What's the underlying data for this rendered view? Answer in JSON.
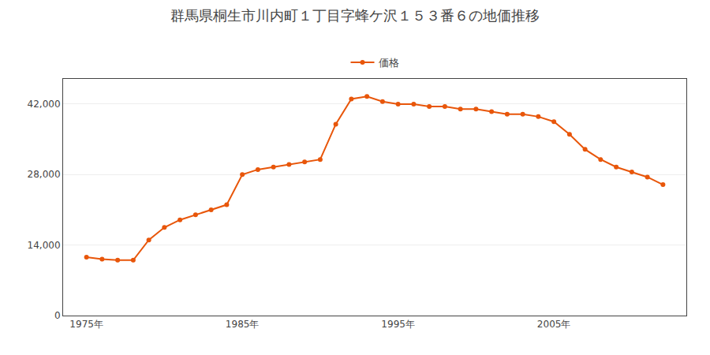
{
  "chart_data": {
    "type": "line",
    "title": "群馬県桐生市川内町１丁目字蜂ケ沢１５３番６の地価推移",
    "x": [
      1975,
      1976,
      1977,
      1978,
      1979,
      1980,
      1981,
      1982,
      1983,
      1984,
      1985,
      1986,
      1987,
      1988,
      1989,
      1990,
      1991,
      1992,
      1993,
      1994,
      1995,
      1996,
      1997,
      1998,
      1999,
      2000,
      2001,
      2002,
      2003,
      2004,
      2005,
      2006,
      2007,
      2008,
      2009,
      2010,
      2011,
      2012
    ],
    "series": [
      {
        "name": "価格",
        "color": "#e8560a",
        "marker": "circle",
        "values": [
          11600,
          11200,
          11000,
          11000,
          15000,
          17500,
          19000,
          20000,
          21000,
          22000,
          28000,
          29000,
          29500,
          30000,
          30500,
          31000,
          38000,
          43000,
          43500,
          42500,
          42000,
          42000,
          41500,
          41500,
          41000,
          41000,
          40500,
          40000,
          40000,
          39500,
          38500,
          36000,
          33000,
          31000,
          29500,
          28500,
          27500,
          26000
        ]
      }
    ],
    "xlim": [
      1973.5,
      2013.5
    ],
    "xticks": [
      {
        "value": 1975,
        "label": "1975年"
      },
      {
        "value": 1985,
        "label": "1985年"
      },
      {
        "value": 1995,
        "label": "1995年"
      },
      {
        "value": 2005,
        "label": "2005年"
      }
    ],
    "ylim": [
      0,
      47000
    ],
    "yticks": [
      0,
      {
        "value": 14000,
        "label": "14,000"
      },
      {
        "value": 28000,
        "label": "28,000"
      },
      {
        "value": 42000,
        "label": "42,000"
      }
    ],
    "grid": true,
    "legend": "top"
  }
}
